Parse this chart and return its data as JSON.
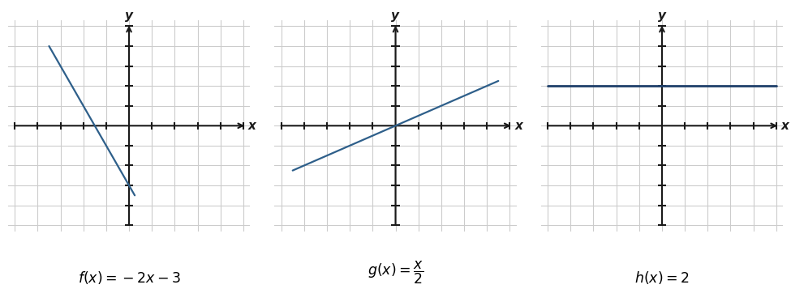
{
  "plots": [
    {
      "func": "f",
      "slope": -2,
      "intercept": -3,
      "line_x_start": -3.5,
      "line_x_end": 0.25,
      "line_color": "#2e5f8a",
      "line_width": 1.6
    },
    {
      "func": "g",
      "slope": 0.5,
      "intercept": 0,
      "line_x_start": -4.5,
      "line_x_end": 4.5,
      "line_color": "#2e5f8a",
      "line_width": 1.6
    },
    {
      "func": "h",
      "slope": 0,
      "intercept": 2,
      "line_x_start": -5,
      "line_x_end": 5,
      "line_color": "#1e3f6a",
      "line_width": 2.0
    }
  ],
  "xlim": [
    -5,
    5
  ],
  "ylim": [
    -5,
    5
  ],
  "grid_color": "#cccccc",
  "axis_color": "#1a1a1a",
  "bg_color": "#ffffff",
  "tick_size": 0.18,
  "label_fontsize": 12.5,
  "axis_lw": 1.5,
  "arrow_scale": 10
}
